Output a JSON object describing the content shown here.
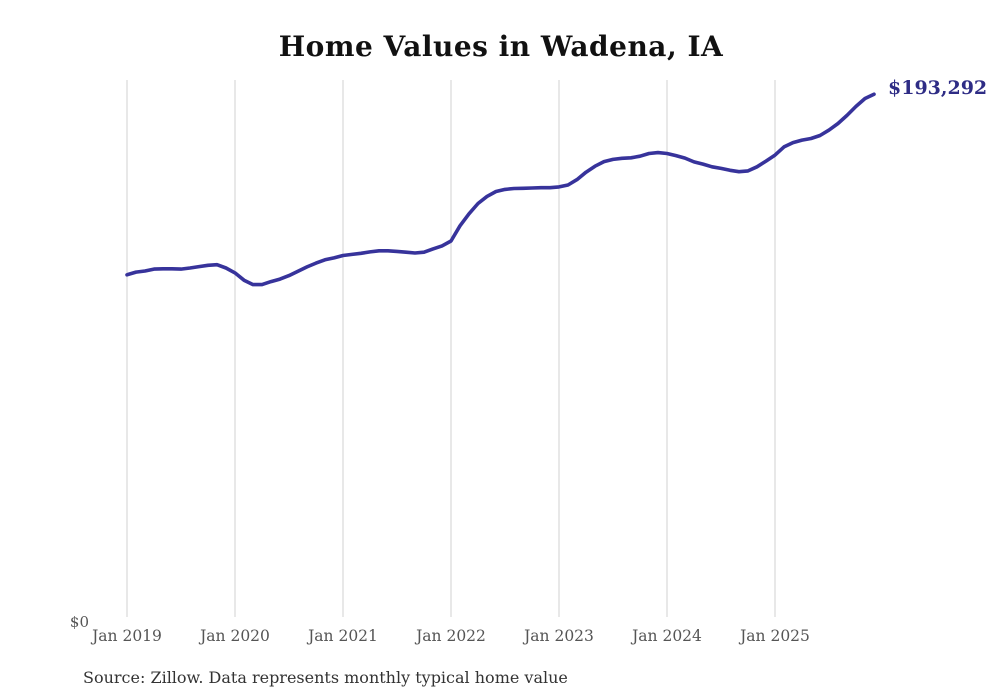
{
  "title": "Home Values in Wadena, IA",
  "end_label": "$193,292",
  "y_zero_label": "$0",
  "source_note": "Source: Zillow. Data represents monthly typical home value",
  "colors": {
    "background": "#ffffff",
    "line": "#37339b",
    "end_label": "#2e2c85",
    "gridline": "#d0d0d0",
    "tick_text": "#555555",
    "title_text": "#111111",
    "source_text": "#333333"
  },
  "chart_data": {
    "type": "line",
    "title": "Home Values in Wadena, IA",
    "xlabel": "",
    "ylabel": "",
    "ylim": [
      0,
      198500
    ],
    "grid": "vertical-only",
    "legend": "none",
    "last_point_label": "$193,292",
    "y_axis_labels_shown": [
      "$0"
    ],
    "x_tick_labels": [
      "Jan 2019",
      "Jan 2020",
      "Jan 2021",
      "Jan 2022",
      "Jan 2023",
      "Jan 2024",
      "Jan 2025"
    ],
    "frequency": "monthly",
    "x": [
      "2019-01",
      "2019-02",
      "2019-03",
      "2019-04",
      "2019-05",
      "2019-06",
      "2019-07",
      "2019-08",
      "2019-09",
      "2019-10",
      "2019-11",
      "2019-12",
      "2020-01",
      "2020-02",
      "2020-03",
      "2020-04",
      "2020-05",
      "2020-06",
      "2020-07",
      "2020-08",
      "2020-09",
      "2020-10",
      "2020-11",
      "2020-12",
      "2021-01",
      "2021-02",
      "2021-03",
      "2021-04",
      "2021-05",
      "2021-06",
      "2021-07",
      "2021-08",
      "2021-09",
      "2021-10",
      "2021-11",
      "2021-12",
      "2022-01",
      "2022-02",
      "2022-03",
      "2022-04",
      "2022-05",
      "2022-06",
      "2022-07",
      "2022-08",
      "2022-09",
      "2022-10",
      "2022-11",
      "2022-12",
      "2023-01",
      "2023-02",
      "2023-03",
      "2023-04",
      "2023-05",
      "2023-06",
      "2023-07",
      "2023-08",
      "2023-09",
      "2023-10",
      "2023-11",
      "2023-12",
      "2024-01",
      "2024-02",
      "2024-03",
      "2024-04",
      "2024-05",
      "2024-06",
      "2024-07",
      "2024-08",
      "2024-09",
      "2024-10",
      "2024-11",
      "2024-12",
      "2025-01",
      "2025-02",
      "2025-03",
      "2025-04",
      "2025-05",
      "2025-06",
      "2025-07",
      "2025-08",
      "2025-09",
      "2025-10",
      "2025-11",
      "2025-12"
    ],
    "series": [
      {
        "name": "Typical home value",
        "values": [
          126900,
          127900,
          128300,
          129000,
          129100,
          129100,
          129000,
          129400,
          129900,
          130400,
          130600,
          129400,
          127600,
          124900,
          123300,
          123300,
          124400,
          125300,
          126600,
          128200,
          129800,
          131200,
          132400,
          133100,
          134000,
          134400,
          134800,
          135300,
          135700,
          135700,
          135500,
          135200,
          134900,
          135200,
          136400,
          137500,
          139300,
          144900,
          149300,
          153100,
          155700,
          157500,
          158300,
          158600,
          158700,
          158800,
          158900,
          158900,
          159200,
          159900,
          161900,
          164600,
          166800,
          168500,
          169300,
          169700,
          169900,
          170500,
          171500,
          171800,
          171500,
          170700,
          169800,
          168400,
          167600,
          166600,
          166000,
          165300,
          164800,
          165100,
          166600,
          168700,
          170900,
          173900,
          175500,
          176400,
          177000,
          178100,
          180100,
          182500,
          185500,
          188800,
          191700,
          193292
        ]
      }
    ]
  }
}
